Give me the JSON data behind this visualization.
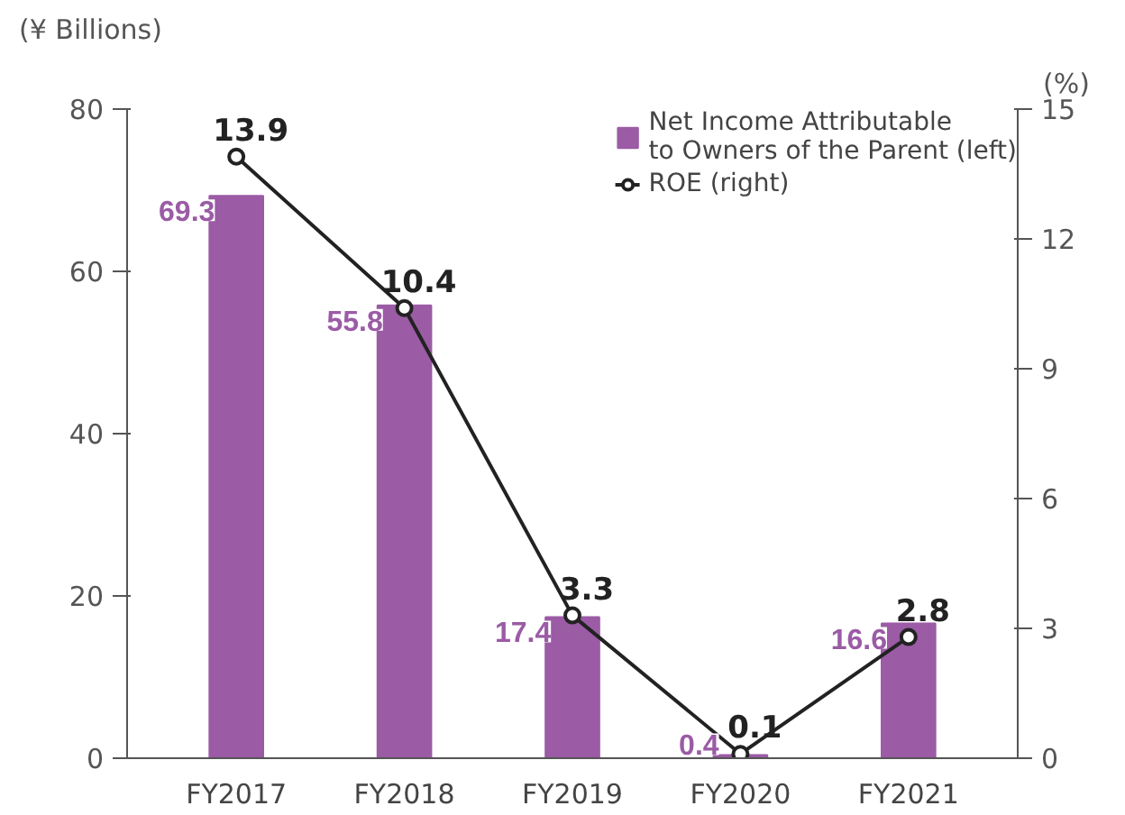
{
  "chart_data": {
    "type": "bar",
    "categories": [
      "FY2017",
      "FY2018",
      "FY2019",
      "FY2020",
      "FY2021"
    ],
    "ylabel": "(¥ Billions)",
    "y2label": "(%)",
    "ylim": [
      0,
      80
    ],
    "yticks": [
      0,
      20,
      40,
      60,
      80
    ],
    "y2lim": [
      0,
      15
    ],
    "y2ticks": [
      0,
      3,
      6,
      9,
      12,
      15
    ],
    "series": [
      {
        "name": "Net Income Attributable\nto Owners of the Parent (left)",
        "color": "#9b5ba5",
        "values": [
          69.3,
          55.8,
          17.4,
          0.4,
          16.6
        ]
      },
      {
        "name": "ROE (right)",
        "type": "line",
        "axis": "y2",
        "color": "#222222",
        "values": [
          13.9,
          10.4,
          3.3,
          0.1,
          2.8
        ]
      }
    ],
    "data_labels": true,
    "legend": "top right",
    "grid": false,
    "marker": "circle",
    "line_style": "solid"
  }
}
